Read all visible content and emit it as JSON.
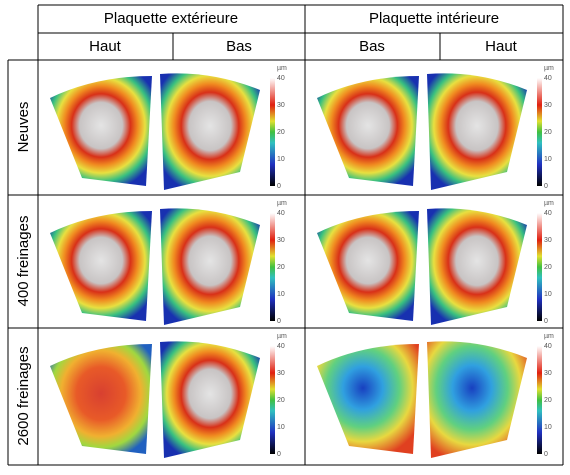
{
  "header": {
    "groups": [
      "Plaquette extérieure",
      "Plaquette intérieure"
    ],
    "columns": [
      "Haut",
      "Bas",
      "Bas",
      "Haut"
    ]
  },
  "rows": [
    "Neuves",
    "400 freinages",
    "2600 freinages"
  ],
  "colorbar": {
    "unit": "µm",
    "ticks": [
      40,
      30,
      20,
      10,
      0
    ]
  }
}
